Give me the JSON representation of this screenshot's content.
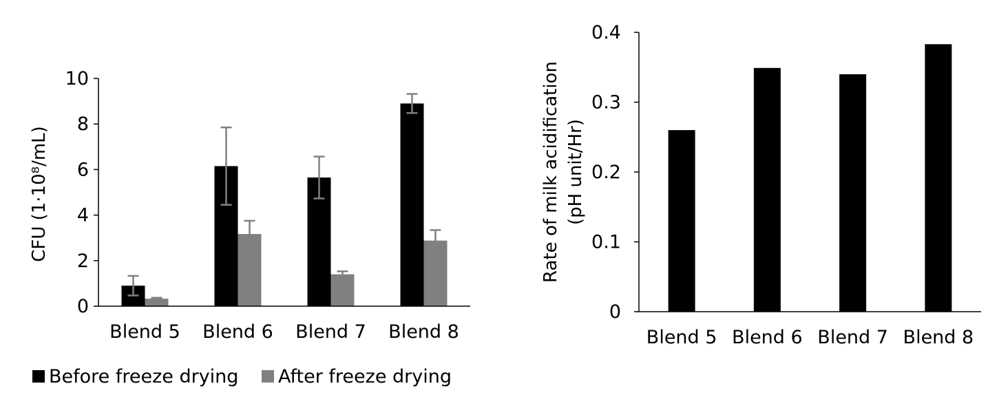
{
  "chart_data": [
    {
      "type": "bar",
      "ylabel": "CFU (1·10⁸/mL)",
      "xlabel": "",
      "categories": [
        "Blend 5",
        "Blend 6",
        "Blend 7",
        "Blend 8"
      ],
      "series": [
        {
          "name": "Before freeze drying",
          "values": [
            0.9,
            6.15,
            5.65,
            8.9
          ],
          "errors": [
            0.43,
            1.7,
            0.92,
            0.42
          ],
          "color": "#000000"
        },
        {
          "name": "After freeze drying",
          "values": [
            0.33,
            3.17,
            1.4,
            2.88
          ],
          "errors": [
            0.04,
            0.58,
            0.13,
            0.46
          ],
          "color": "#808080"
        }
      ],
      "ylim": [
        0,
        10
      ],
      "yticks": [
        0,
        2,
        4,
        6,
        8,
        10
      ],
      "legend_position": "bottom",
      "error_bar_color": "#808080"
    },
    {
      "type": "bar",
      "ylabel": "Rate of milk acidification\n(pH unit/Hr)",
      "xlabel": "",
      "categories": [
        "Blend 5",
        "Blend 6",
        "Blend 7",
        "Blend 8"
      ],
      "values": [
        0.26,
        0.349,
        0.34,
        0.383
      ],
      "color": "#000000",
      "ylim": [
        0,
        0.4
      ],
      "yticks": [
        "0",
        "0.1",
        "0.2",
        "0.3",
        "0.4"
      ]
    }
  ]
}
